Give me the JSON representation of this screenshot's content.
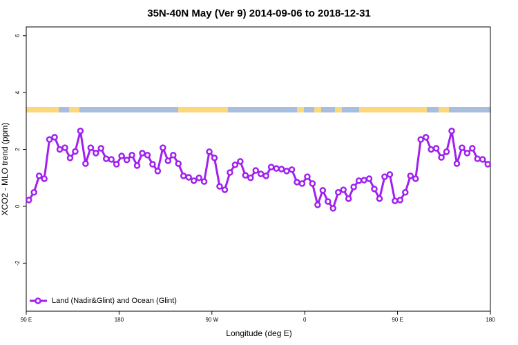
{
  "chart_data": {
    "type": "line",
    "title": "35N-40N May (Ver 9)   2014-09-06 to 2018-12-31",
    "x_label": "Longitude (deg E)",
    "y_label": "XCO2 - MLO trend (ppm)",
    "xlim": [
      90,
      540
    ],
    "xticks": [
      {
        "value": 90,
        "label": "90 E"
      },
      180,
      {
        "value": 270,
        "label": "90 W"
      },
      {
        "value": 360,
        "label": "0"
      },
      {
        "value": 450,
        "label": "90 E"
      },
      {
        "value": 540,
        "label": "180"
      }
    ],
    "ylim": [
      -3.69,
      6.31
    ],
    "yticks": [
      -2,
      0,
      2,
      4,
      6
    ],
    "legend": "bottom-left",
    "x": [
      92.5,
      97.5,
      102.5,
      107.5,
      112.5,
      117.5,
      122.5,
      127.5,
      132.5,
      137.5,
      142.5,
      147.5,
      152.5,
      157.5,
      162.5,
      167.5,
      172.5,
      177.5,
      182.5,
      187.5,
      192.5,
      197.5,
      202.5,
      207.5,
      212.5,
      217.5,
      222.5,
      227.5,
      232.5,
      237.5,
      242.5,
      247.5,
      252.5,
      257.5,
      262.5,
      267.5,
      272.5,
      277.5,
      282.5,
      287.5,
      292.5,
      297.5,
      302.5,
      307.5,
      312.5,
      317.5,
      322.5,
      327.5,
      332.5,
      337.5,
      342.5,
      347.5,
      352.5,
      357.5,
      362.5,
      367.5,
      372.5,
      377.5,
      382.5,
      387.5,
      392.5,
      397.5,
      402.5,
      407.5,
      412.5,
      417.5,
      422.5,
      427.5,
      432.5,
      437.5,
      442.5,
      447.5,
      452.5,
      457.5,
      462.5,
      467.5,
      472.5,
      477.5,
      482.5,
      487.5,
      492.5,
      497.5,
      502.5,
      507.5,
      512.5,
      517.5,
      522.5,
      527.5,
      532.5,
      537.5
    ],
    "series": [
      {
        "name": "Land (Nadir&Glint) and Ocean (Glint)",
        "color": "#a020f0",
        "values": [
          0.22,
          0.49,
          1.07,
          0.97,
          2.35,
          2.43,
          2.0,
          2.06,
          1.7,
          1.93,
          2.65,
          1.5,
          2.06,
          1.87,
          2.04,
          1.67,
          1.65,
          1.48,
          1.77,
          1.63,
          1.8,
          1.43,
          1.87,
          1.8,
          1.48,
          1.24,
          2.06,
          1.6,
          1.8,
          1.5,
          1.07,
          1.02,
          0.9,
          1.0,
          0.87,
          1.92,
          1.7,
          0.7,
          0.58,
          1.19,
          1.46,
          1.58,
          1.09,
          1.0,
          1.26,
          1.14,
          1.07,
          1.38,
          1.33,
          1.31,
          1.24,
          1.29,
          0.85,
          0.8,
          1.04,
          0.8,
          0.05,
          0.56,
          0.17,
          -0.07,
          0.49,
          0.58,
          0.27,
          0.68,
          0.9,
          0.92,
          0.97,
          0.61,
          0.27,
          1.04,
          1.12,
          0.19,
          0.22,
          0.49,
          1.07,
          0.97,
          2.35,
          2.43,
          2.0,
          2.04,
          1.72,
          1.92,
          2.65,
          1.5,
          2.06,
          1.87,
          2.04,
          1.67,
          1.65,
          1.48
        ]
      }
    ]
  }
}
